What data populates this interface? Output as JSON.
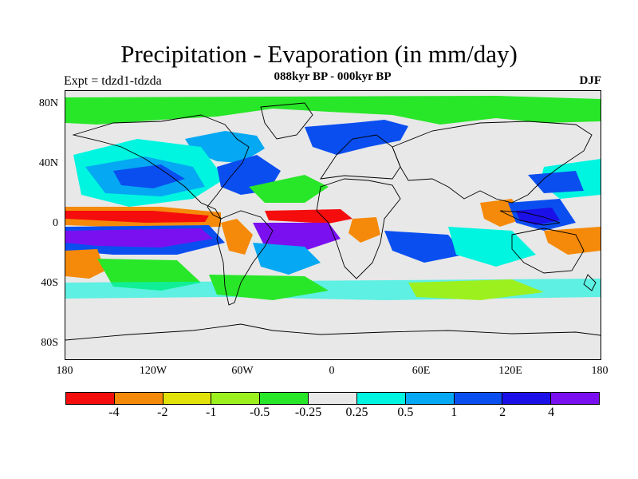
{
  "header": {
    "title": "Precipitation - Evaporation (in mm/day)",
    "subtitle": "088kyr BP - 000kyr BP",
    "expt": "Expt = tdzd1-tdzda",
    "season": "DJF"
  },
  "map": {
    "projection": "cylindrical equidistant",
    "lon_range": [
      -180,
      180
    ],
    "lat_range": [
      -90,
      90
    ],
    "y_ticks": [
      "80N",
      "40N",
      "0",
      "40S",
      "80S"
    ],
    "x_ticks": [
      "180",
      "120W",
      "60W",
      "0",
      "60E",
      "120E",
      "180"
    ],
    "background_color": "#e8e8e8",
    "coastline_color": "#000000"
  },
  "colorbar": {
    "colors": [
      "#f50d0d",
      "#f58a0a",
      "#e2e20a",
      "#9cf01e",
      "#28e628",
      "#e8e8e8",
      "#00f5e0",
      "#05a8f2",
      "#0a4ef0",
      "#1c10e8",
      "#7a10f0"
    ],
    "labels": [
      "-4",
      "-2",
      "-1",
      "-0.5",
      "-0.25",
      "0.25",
      "0.5",
      "1",
      "2",
      "4"
    ]
  }
}
